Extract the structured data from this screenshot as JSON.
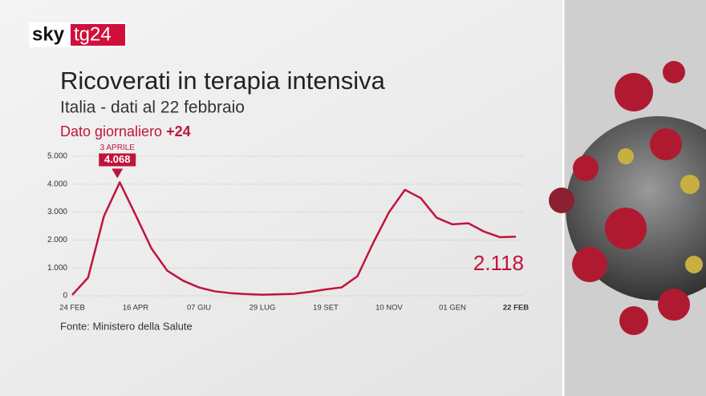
{
  "logo": {
    "left": "sky",
    "right": "tg24"
  },
  "chart_data": {
    "type": "line",
    "title": "Ricoverati in terapia intensiva",
    "subtitle": "Italia - dati al 22 febbraio",
    "daily": {
      "label": "Dato giornaliero",
      "value": 24,
      "value_label": "+24"
    },
    "categories": [
      "24 FEB",
      null,
      null,
      null,
      "16 APR",
      null,
      null,
      null,
      "07 GIU",
      null,
      null,
      null,
      "29 LUG",
      null,
      null,
      null,
      "19 SET",
      null,
      null,
      null,
      "10 NOV",
      null,
      null,
      null,
      "01 GEN",
      null,
      null,
      null,
      "22 FEB"
    ],
    "series": [
      {
        "name": "Ricoverati in terapia intensiva",
        "color": "#c0143c",
        "values": [
          30,
          650,
          2850,
          4068,
          2900,
          1700,
          900,
          540,
          300,
          160,
          95,
          60,
          40,
          55,
          70,
          140,
          230,
          300,
          700,
          1900,
          3000,
          3800,
          3500,
          2800,
          2560,
          2600,
          2300,
          2100,
          2118
        ],
        "value_labels": [
          null,
          null,
          null,
          "4.068",
          null,
          null,
          null,
          null,
          null,
          null,
          null,
          null,
          null,
          null,
          null,
          null,
          null,
          null,
          null,
          null,
          null,
          null,
          null,
          null,
          null,
          null,
          null,
          null,
          "2.118"
        ]
      }
    ],
    "annotation": {
      "index": 3,
      "label": "3 APRILE"
    },
    "ylim": [
      0,
      5000
    ],
    "yticks": [
      0,
      {
        "value": 1000,
        "label": "1.000"
      },
      {
        "value": 2000,
        "label": "2.000"
      },
      {
        "value": 3000,
        "label": "3.000"
      },
      {
        "value": 4000,
        "label": "4.000"
      },
      {
        "value": 5000,
        "label": "5.000"
      }
    ],
    "grid": true,
    "source": "Fonte: Ministero della Salute"
  }
}
